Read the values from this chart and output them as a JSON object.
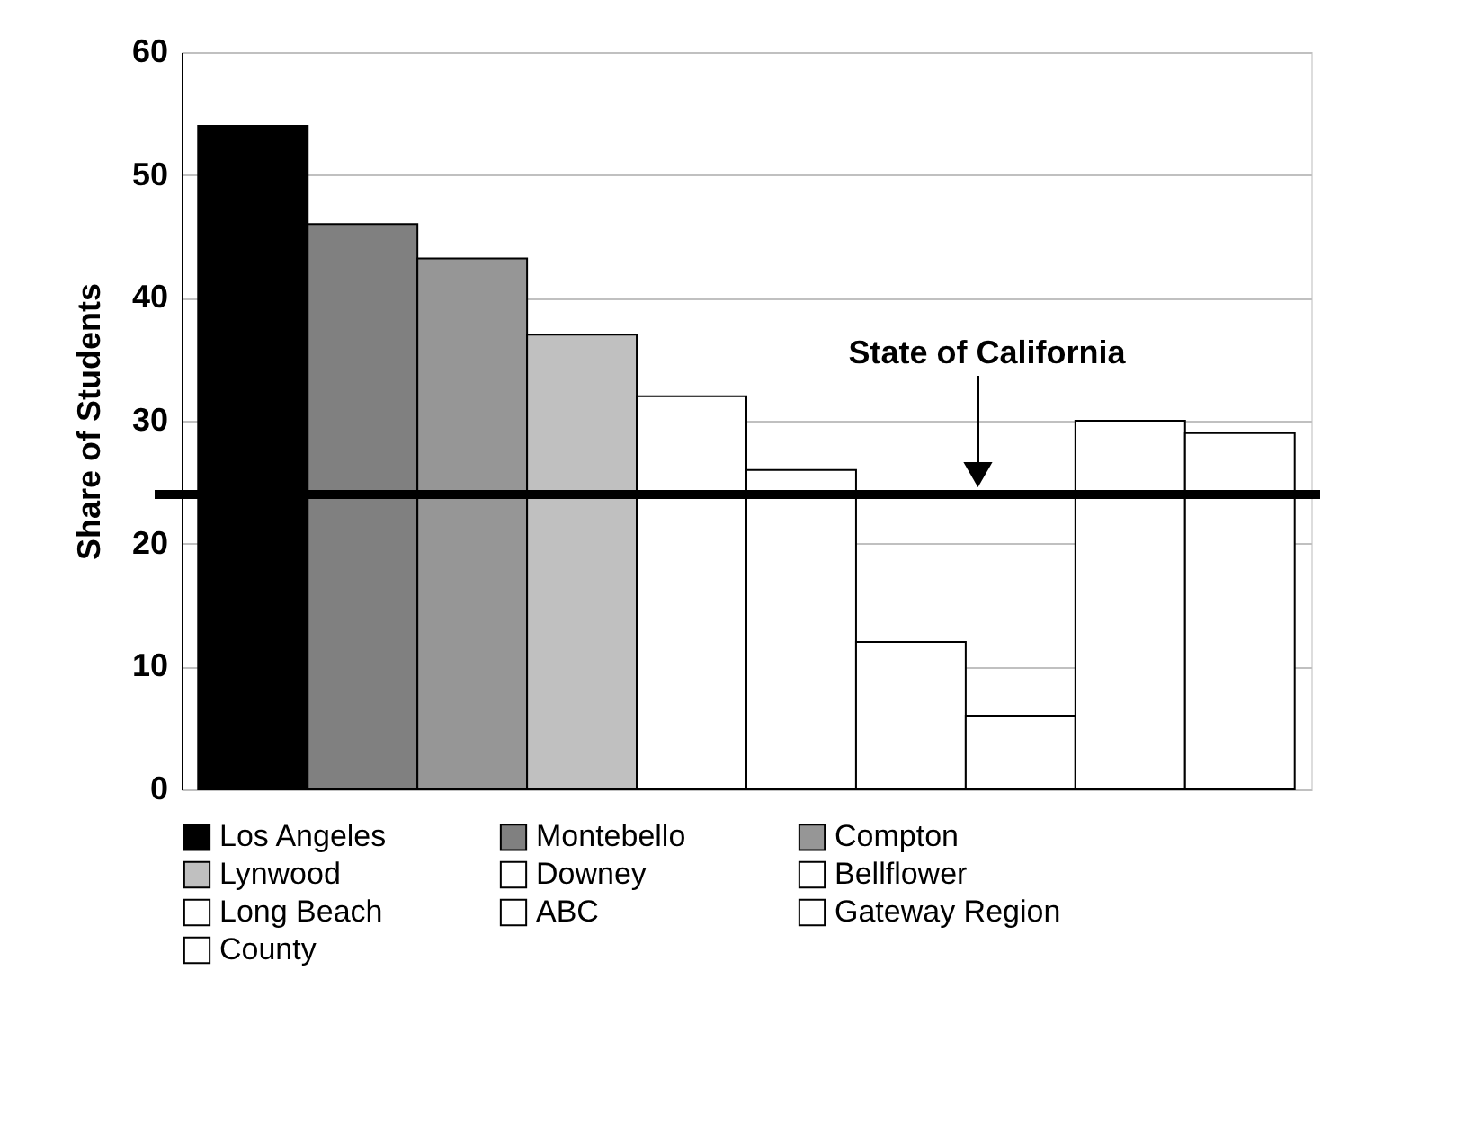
{
  "chart_data": {
    "type": "bar",
    "ylabel": "Share of Students",
    "categories": [
      null
    ],
    "series": [
      {
        "name": "Los Angeles",
        "color": "#000000",
        "values": [
          54
        ]
      },
      {
        "name": "Montebello",
        "color": "#808080",
        "values": [
          46
        ]
      },
      {
        "name": "Compton",
        "color": "#969696",
        "values": [
          43.2
        ]
      },
      {
        "name": "Lynwood",
        "color": "#c0c0c0",
        "values": [
          37
        ]
      },
      {
        "name": "Downey",
        "color": "#ffffff",
        "values": [
          32
        ]
      },
      {
        "name": "Bellflower",
        "color": "#ffffff",
        "values": [
          26
        ]
      },
      {
        "name": "Long Beach",
        "color": "#ffffff",
        "values": [
          12
        ]
      },
      {
        "name": "ABC",
        "color": "#ffffff",
        "values": [
          6
        ]
      },
      {
        "name": "Gateway Region",
        "color": "#ffffff",
        "values": [
          30
        ]
      },
      {
        "name": "County",
        "color": "#ffffff",
        "values": [
          29
        ]
      }
    ],
    "ylim": [
      0,
      60
    ],
    "yticks": [
      0,
      10,
      20,
      30,
      40,
      50,
      60
    ],
    "grid": "y",
    "legend": "bottom",
    "ref_lines": [
      {
        "axis": "y",
        "value": 24,
        "color": "#000000"
      }
    ],
    "annotations": [
      "State of California"
    ]
  }
}
